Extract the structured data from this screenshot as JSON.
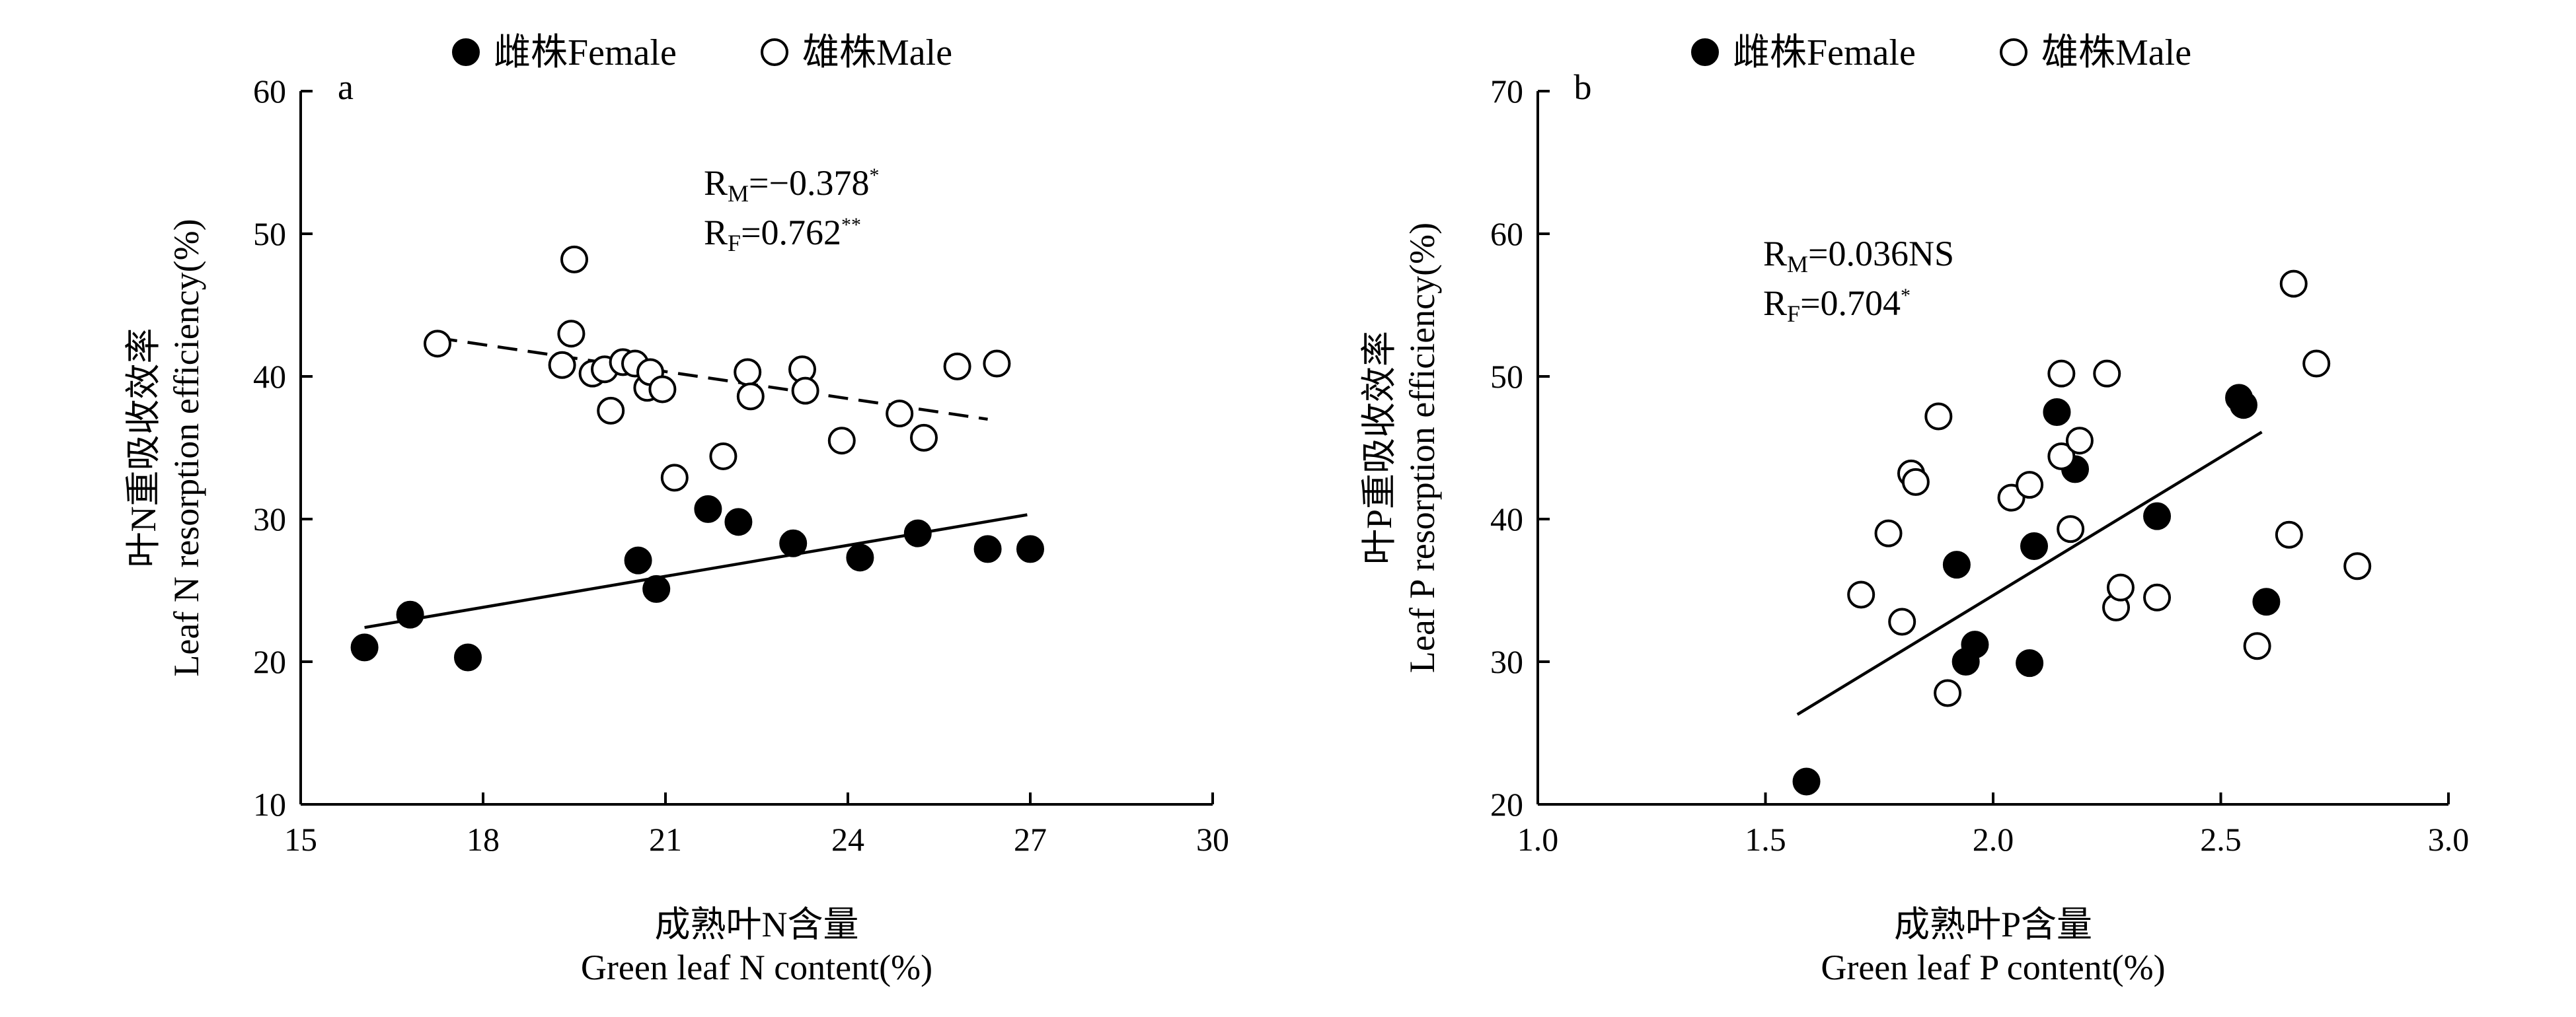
{
  "chart_data": [
    {
      "type": "scatter",
      "panel_label": "a",
      "legend": {
        "female": "雌株Female",
        "male": "雄株Male",
        "position": "top"
      },
      "xlabel_cn": "成熟叶N含量",
      "xlabel_en": "Green leaf N content(%)",
      "ylabel_cn": "叶N重吸收效率",
      "ylabel_en": "Leaf N resorption efficiency(%)",
      "xlim": [
        15,
        30
      ],
      "ylim": [
        10,
        60
      ],
      "xticks": [
        15,
        18,
        21,
        24,
        27,
        30
      ],
      "yticks": [
        10,
        20,
        30,
        40,
        50,
        60
      ],
      "xtick_labels": [
        "15",
        "18",
        "21",
        "24",
        "27",
        "30"
      ],
      "ytick_labels": [
        "10",
        "20",
        "30",
        "40",
        "50",
        "60"
      ],
      "stats": [
        {
          "main": "R",
          "sub": "M",
          "value": "=−0.378",
          "sup": "*"
        },
        {
          "main": "R",
          "sub": "F",
          "value": "=0.762",
          "sup": "**"
        }
      ],
      "series": [
        {
          "name": "雌株Female",
          "marker": "filled",
          "x": [
            16.05,
            16.8,
            17.75,
            20.55,
            20.85,
            21.7,
            22.2,
            23.1,
            24.2,
            25.15,
            26.3,
            27.0
          ],
          "y": [
            21.0,
            23.3,
            20.3,
            27.1,
            25.1,
            30.7,
            29.8,
            28.3,
            27.3,
            29.0,
            27.9,
            27.9
          ]
        },
        {
          "name": "雄株Male",
          "marker": "open",
          "x": [
            17.25,
            19.3,
            19.45,
            19.5,
            19.8,
            20.0,
            20.1,
            20.3,
            20.5,
            20.7,
            20.75,
            20.95,
            21.15,
            21.95,
            22.35,
            22.4,
            23.25,
            23.3,
            23.9,
            24.85,
            25.25,
            25.8,
            26.45
          ],
          "y": [
            42.3,
            40.8,
            43.0,
            48.2,
            40.2,
            40.5,
            37.6,
            41.0,
            40.9,
            39.2,
            40.3,
            39.1,
            32.9,
            34.4,
            40.3,
            38.6,
            40.5,
            39.0,
            35.5,
            37.4,
            35.7,
            40.7,
            40.9
          ]
        }
      ],
      "fit_lines": [
        {
          "series": "雄株Male",
          "style": "dashed",
          "x": [
            17.25,
            26.3
          ],
          "y": [
            42.7,
            37.0
          ]
        },
        {
          "series": "雌株Female",
          "style": "solid",
          "x": [
            16.05,
            26.95
          ],
          "y": [
            22.4,
            30.3
          ]
        }
      ]
    },
    {
      "type": "scatter",
      "panel_label": "b",
      "legend": {
        "female": "雌株Female",
        "male": "雄株Male",
        "position": "top"
      },
      "xlabel_cn": "成熟叶P含量",
      "xlabel_en": "Green leaf P content(%)",
      "ylabel_cn": "叶P重吸收效率",
      "ylabel_en": "Leaf P resorption efficiency(%)",
      "xlim": [
        1.0,
        3.0
      ],
      "ylim": [
        20,
        70
      ],
      "xticks": [
        1.0,
        1.5,
        2.0,
        2.5,
        3.0
      ],
      "yticks": [
        20,
        30,
        40,
        50,
        60,
        70
      ],
      "xtick_labels": [
        "1.0",
        "1.5",
        "2.0",
        "2.5",
        "3.0"
      ],
      "ytick_labels": [
        "20",
        "30",
        "40",
        "50",
        "60",
        "70"
      ],
      "stats": [
        {
          "main": "R",
          "sub": "M",
          "value": "=0.036NS",
          "sup": ""
        },
        {
          "main": "R",
          "sub": "F",
          "value": "=0.704",
          "sup": "*"
        }
      ],
      "series": [
        {
          "name": "雌株Female",
          "marker": "filled",
          "x": [
            1.59,
            1.92,
            1.94,
            1.96,
            2.08,
            2.09,
            2.14,
            2.18,
            2.36,
            2.54,
            2.55,
            2.6
          ],
          "y": [
            21.6,
            36.8,
            30.0,
            31.2,
            29.9,
            38.1,
            47.5,
            43.5,
            40.2,
            48.5,
            48.0,
            34.2
          ]
        },
        {
          "name": "雄株Male",
          "marker": "open",
          "x": [
            1.71,
            1.77,
            1.8,
            1.82,
            1.83,
            1.88,
            1.9,
            2.04,
            2.08,
            2.15,
            2.15,
            2.17,
            2.19,
            2.25,
            2.27,
            2.28,
            2.36,
            2.58,
            2.65,
            2.66,
            2.71,
            2.8
          ],
          "y": [
            34.7,
            39.0,
            32.8,
            43.2,
            42.6,
            47.2,
            27.8,
            41.5,
            42.4,
            50.2,
            44.4,
            39.3,
            45.5,
            50.2,
            33.8,
            35.2,
            34.5,
            31.1,
            38.9,
            56.5,
            50.9,
            36.7
          ]
        }
      ],
      "fit_lines": [
        {
          "series": "雌株Female",
          "style": "solid",
          "x": [
            1.57,
            2.59
          ],
          "y": [
            26.3,
            46.1
          ]
        }
      ]
    }
  ]
}
